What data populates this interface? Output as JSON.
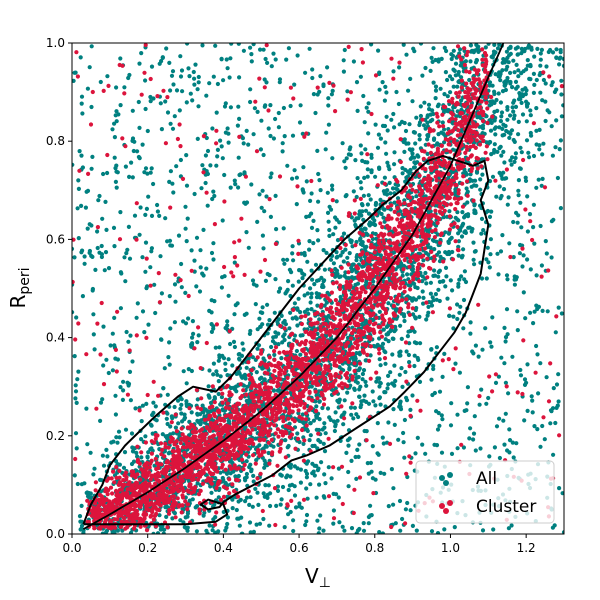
{
  "chart_data": {
    "type": "scatter",
    "title": "",
    "xlabel": "V",
    "xlabel_sub": "⊥",
    "ylabel": "R",
    "ylabel_sub": "peri",
    "xlim": [
      0.0,
      1.3
    ],
    "ylim": [
      0.0,
      1.0
    ],
    "xticks": [
      "0.0",
      "0.2",
      "0.4",
      "0.6",
      "0.8",
      "1.0",
      "1.2"
    ],
    "yticks": [
      "0.0",
      "0.2",
      "0.4",
      "0.6",
      "0.8",
      "1.0"
    ],
    "grid": false,
    "legend_position": "lower-right",
    "series": [
      {
        "name": "All",
        "color": "#008080",
        "description_density": "broad cloud around curve"
      },
      {
        "name": "Cluster",
        "color": "#dc143c",
        "description_density": "concentrated along curve"
      }
    ],
    "trend_curve": {
      "color": "#000000",
      "points": [
        [
          0.03,
          0.01
        ],
        [
          0.1,
          0.04
        ],
        [
          0.2,
          0.085
        ],
        [
          0.3,
          0.135
        ],
        [
          0.4,
          0.19
        ],
        [
          0.5,
          0.25
        ],
        [
          0.6,
          0.32
        ],
        [
          0.7,
          0.4
        ],
        [
          0.8,
          0.5
        ],
        [
          0.9,
          0.61
        ],
        [
          1.0,
          0.75
        ],
        [
          1.05,
          0.84
        ],
        [
          1.1,
          0.93
        ],
        [
          1.14,
          1.0
        ]
      ]
    },
    "contour": {
      "color": "#000000",
      "points": [
        [
          0.03,
          0.02
        ],
        [
          0.05,
          0.06
        ],
        [
          0.08,
          0.1
        ],
        [
          0.1,
          0.14
        ],
        [
          0.14,
          0.18
        ],
        [
          0.18,
          0.21
        ],
        [
          0.22,
          0.24
        ],
        [
          0.28,
          0.28
        ],
        [
          0.32,
          0.3
        ],
        [
          0.38,
          0.29
        ],
        [
          0.42,
          0.32
        ],
        [
          0.46,
          0.36
        ],
        [
          0.5,
          0.4
        ],
        [
          0.55,
          0.45
        ],
        [
          0.6,
          0.5
        ],
        [
          0.66,
          0.55
        ],
        [
          0.72,
          0.6
        ],
        [
          0.78,
          0.64
        ],
        [
          0.82,
          0.67
        ],
        [
          0.87,
          0.7
        ],
        [
          0.91,
          0.74
        ],
        [
          0.94,
          0.76
        ],
        [
          0.98,
          0.77
        ],
        [
          1.02,
          0.76
        ],
        [
          1.06,
          0.75
        ],
        [
          1.09,
          0.76
        ],
        [
          1.1,
          0.72
        ],
        [
          1.08,
          0.68
        ],
        [
          1.1,
          0.63
        ],
        [
          1.09,
          0.58
        ],
        [
          1.08,
          0.53
        ],
        [
          1.06,
          0.49
        ],
        [
          1.04,
          0.45
        ],
        [
          1.01,
          0.41
        ],
        [
          0.97,
          0.37
        ],
        [
          0.93,
          0.33
        ],
        [
          0.88,
          0.29
        ],
        [
          0.84,
          0.26
        ],
        [
          0.8,
          0.24
        ],
        [
          0.76,
          0.22
        ],
        [
          0.72,
          0.2
        ],
        [
          0.68,
          0.18
        ],
        [
          0.65,
          0.17
        ],
        [
          0.62,
          0.16
        ],
        [
          0.58,
          0.15
        ],
        [
          0.53,
          0.12
        ],
        [
          0.48,
          0.1
        ],
        [
          0.43,
          0.08
        ],
        [
          0.4,
          0.065
        ],
        [
          0.39,
          0.055
        ],
        [
          0.36,
          0.05
        ],
        [
          0.34,
          0.06
        ],
        [
          0.36,
          0.07
        ],
        [
          0.4,
          0.06
        ],
        [
          0.41,
          0.04
        ],
        [
          0.38,
          0.025
        ],
        [
          0.3,
          0.02
        ],
        [
          0.2,
          0.02
        ],
        [
          0.1,
          0.02
        ],
        [
          0.03,
          0.02
        ]
      ]
    }
  }
}
